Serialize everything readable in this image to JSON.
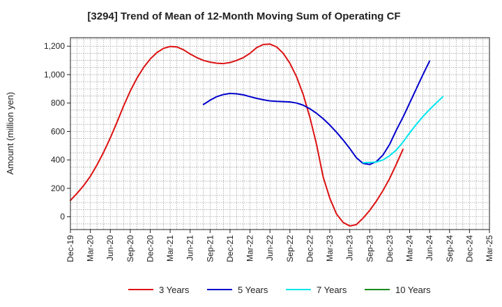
{
  "chart_data": {
    "type": "line",
    "title": "[3294]  Trend of Mean of 12-Month Moving Sum of Operating CF",
    "xlabel": "",
    "ylabel": "Amount (million yen)",
    "ylim": [
      -90,
      1260
    ],
    "yticks": [
      0,
      200,
      400,
      600,
      800,
      1000,
      1200
    ],
    "ytick_labels": [
      "0",
      "200",
      "400",
      "600",
      "800",
      "1,000",
      "1,200"
    ],
    "x_range": [
      "2019-12",
      "2025-03"
    ],
    "xtick_labels": [
      "Dec-19",
      "Mar-20",
      "Jun-20",
      "Sep-20",
      "Dec-20",
      "Mar-21",
      "Jun-21",
      "Sep-21",
      "Dec-21",
      "Mar-22",
      "Jun-22",
      "Sep-22",
      "Dec-22",
      "Mar-23",
      "Jun-23",
      "Sep-23",
      "Dec-23",
      "Mar-24",
      "Jun-24",
      "Sep-24",
      "Dec-24",
      "Mar-25"
    ],
    "grid": true,
    "legend_position": "bottom",
    "series": [
      {
        "name": "3 Years",
        "color": "#dd1111",
        "start": "2019-12",
        "values": [
          115,
          165,
          220,
          285,
          365,
          455,
          555,
          665,
          780,
          885,
          975,
          1050,
          1110,
          1155,
          1185,
          1198,
          1195,
          1175,
          1145,
          1120,
          1100,
          1088,
          1080,
          1078,
          1085,
          1100,
          1120,
          1150,
          1190,
          1212,
          1215,
          1195,
          1150,
          1080,
          985,
          860,
          700,
          510,
          280,
          130,
          20,
          -40,
          -65,
          -55,
          -10,
          45,
          110,
          185,
          270,
          370,
          475
        ]
      },
      {
        "name": "5 Years",
        "color": "#0000cc",
        "start": "2021-08",
        "values": [
          790,
          820,
          845,
          860,
          868,
          865,
          858,
          845,
          833,
          823,
          815,
          812,
          810,
          808,
          800,
          785,
          760,
          728,
          690,
          645,
          595,
          540,
          480,
          415,
          375,
          368,
          388,
          435,
          510,
          610,
          700,
          800,
          900,
          1000,
          1095
        ]
      },
      {
        "name": "7 Years",
        "color": "#00e5ee",
        "start": "2023-08",
        "values": [
          380,
          382,
          385,
          400,
          430,
          470,
          525,
          590,
          650,
          705,
          755,
          800,
          845
        ]
      },
      {
        "name": "10 Years",
        "color": "#1a8a1a",
        "start": "2023-08",
        "values": []
      }
    ]
  }
}
